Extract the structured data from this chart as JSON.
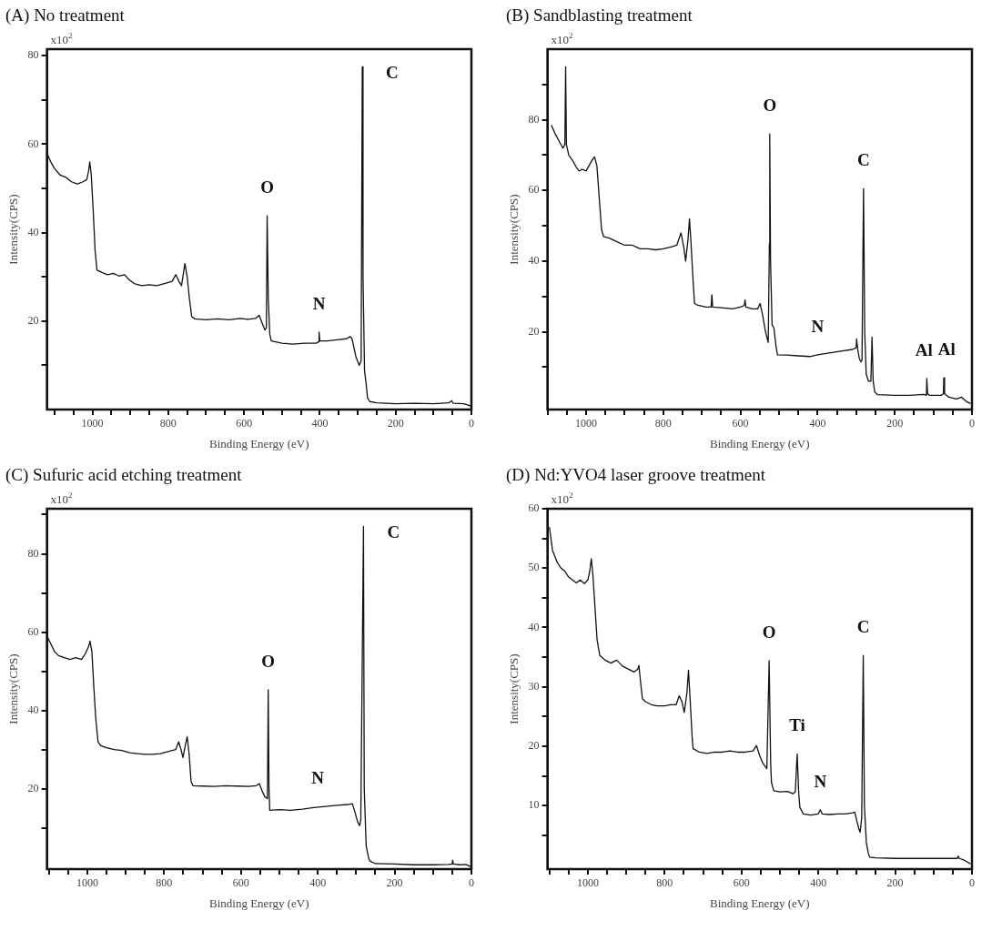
{
  "chart_data": [
    {
      "type": "line",
      "title": "(A) No treatment",
      "xlabel": "Binding Energy (eV)",
      "ylabel": "Intensity(CPS)",
      "color": "#111111",
      "xlim": [
        1120,
        0
      ],
      "ylim": [
        0,
        81.5
      ],
      "xticks": [
        {
          "value": 1100,
          "label": null
        },
        {
          "value": 1050,
          "label": null
        },
        1000,
        {
          "value": 950,
          "label": null
        },
        {
          "value": 900,
          "label": null
        },
        {
          "value": 850,
          "label": null
        },
        800,
        {
          "value": 750,
          "label": null
        },
        {
          "value": 700,
          "label": null
        },
        {
          "value": 650,
          "label": null
        },
        600,
        {
          "value": 550,
          "label": null
        },
        {
          "value": 500,
          "label": null
        },
        {
          "value": 450,
          "label": null
        },
        400,
        {
          "value": 350,
          "label": null
        },
        {
          "value": 300,
          "label": null
        },
        {
          "value": 250,
          "label": null
        },
        200,
        {
          "value": 150,
          "label": null
        },
        {
          "value": 100,
          "label": null
        },
        {
          "value": 50,
          "label": null
        },
        0
      ],
      "yticks": [
        {
          "value": 10,
          "label": null
        },
        20,
        {
          "value": 30,
          "label": null
        },
        40,
        {
          "value": 50,
          "label": null
        },
        60,
        {
          "value": 70,
          "label": null
        },
        80
      ],
      "x": [
        1120,
        1110,
        1100,
        1085,
        1070,
        1055,
        1040,
        1025,
        1015,
        1010,
        1007,
        1003,
        998,
        993,
        988,
        975,
        960,
        945,
        930,
        915,
        905,
        890,
        870,
        850,
        830,
        810,
        790,
        780,
        772,
        765,
        756,
        750,
        744,
        738,
        730,
        700,
        670,
        640,
        610,
        590,
        570,
        560,
        552,
        545,
        541,
        539,
        536,
        532,
        528,
        500,
        470,
        440,
        410,
        403,
        402,
        400,
        380,
        350,
        330,
        320,
        315,
        305,
        296,
        291,
        288,
        286,
        282,
        278,
        274,
        268,
        250,
        200,
        150,
        100,
        60,
        52,
        48,
        20,
        5,
        0
      ],
      "values": [
        58,
        56,
        54.5,
        53,
        52.5,
        51.5,
        51,
        51.5,
        52,
        54,
        56,
        53,
        45,
        36,
        31.5,
        31,
        30.5,
        30.8,
        30.2,
        30.5,
        29.5,
        28.5,
        28,
        28.2,
        28,
        28.5,
        29,
        30.5,
        29,
        28,
        33,
        30,
        25,
        21,
        20.5,
        20.3,
        20.5,
        20.3,
        20.6,
        20.4,
        20.6,
        21.3,
        19.5,
        18,
        18.5,
        43.8,
        25,
        17,
        15.5,
        15,
        14.8,
        15,
        15,
        15.3,
        17.5,
        15.5,
        15.5,
        15.8,
        16,
        16.5,
        16,
        12,
        10,
        11,
        77.5,
        30,
        8.7,
        6,
        2.6,
        1.8,
        1.5,
        1.3,
        1.4,
        1.3,
        1.5,
        2,
        1.4,
        1.3,
        0.9,
        0.6
      ],
      "annotations": [
        "x10$^{2}$",
        {
          "text": "C",
          "x": 288,
          "y": 77.5
        },
        {
          "text": "O",
          "x": 539,
          "y": 43.8
        },
        {
          "text": "N",
          "x": 402,
          "y": 17.5
        }
      ]
    },
    {
      "type": "line",
      "title": "(B) Sandblasting treatment",
      "xlabel": "Binding Energy (eV)",
      "ylabel": "Intensity(CPS)",
      "color": "#111111",
      "xlim": [
        1100,
        0
      ],
      "ylim": [
        -2,
        100
      ],
      "xticks": [
        {
          "value": 1100,
          "label": null
        },
        {
          "value": 1050,
          "label": null
        },
        1000,
        {
          "value": 950,
          "label": null
        },
        {
          "value": 900,
          "label": null
        },
        {
          "value": 850,
          "label": null
        },
        800,
        {
          "value": 750,
          "label": null
        },
        {
          "value": 700,
          "label": null
        },
        {
          "value": 650,
          "label": null
        },
        600,
        {
          "value": 550,
          "label": null
        },
        {
          "value": 500,
          "label": null
        },
        {
          "value": 450,
          "label": null
        },
        400,
        {
          "value": 350,
          "label": null
        },
        {
          "value": 300,
          "label": null
        },
        {
          "value": 250,
          "label": null
        },
        200,
        {
          "value": 150,
          "label": null
        },
        {
          "value": 100,
          "label": null
        },
        {
          "value": 50,
          "label": null
        },
        0
      ],
      "yticks": [
        {
          "value": 10,
          "label": null
        },
        20,
        {
          "value": 30,
          "label": null
        },
        40,
        {
          "value": 50,
          "label": null
        },
        60,
        {
          "value": 70,
          "label": null
        },
        80,
        {
          "value": 90,
          "label": null
        }
      ],
      "x": [
        1090,
        1080,
        1070,
        1060,
        1055,
        1053,
        1051,
        1045,
        1035,
        1025,
        1018,
        1010,
        1000,
        990,
        982,
        978,
        972,
        966,
        960,
        955,
        940,
        920,
        900,
        880,
        860,
        840,
        820,
        800,
        780,
        765,
        754,
        747,
        742,
        736,
        732,
        728,
        723,
        719,
        710,
        690,
        676,
        674,
        672,
        650,
        620,
        600,
        590,
        588,
        586,
        570,
        555,
        549,
        543,
        535,
        528,
        525,
        524,
        522,
        518,
        513,
        508,
        504,
        480,
        450,
        420,
        400,
        370,
        340,
        310,
        300,
        299,
        296,
        292,
        288,
        285,
        281,
        278,
        274,
        268,
        262,
        259,
        256,
        252,
        245,
        200,
        160,
        125,
        118,
        117,
        115,
        110,
        80,
        74,
        73,
        71,
        60,
        40,
        27,
        15,
        4
      ],
      "values": [
        78.5,
        76,
        74,
        72,
        73,
        95,
        73,
        70,
        68.5,
        66.5,
        65.5,
        66,
        65.5,
        67.5,
        69,
        69.5,
        67,
        58,
        49,
        47,
        46.5,
        45.5,
        44.5,
        44.5,
        43.5,
        43.5,
        43.2,
        43.5,
        44,
        44.5,
        48,
        44,
        40,
        46,
        52,
        45,
        35,
        28,
        27.5,
        27,
        27,
        30.5,
        27,
        26.8,
        26.5,
        27,
        27.5,
        29,
        27,
        26.5,
        26.5,
        28,
        25,
        20,
        17,
        45,
        76,
        40,
        22,
        21,
        16,
        13.5,
        13.4,
        13.2,
        13,
        13.5,
        14,
        14.5,
        15,
        15.5,
        18,
        15,
        12.5,
        11.5,
        12,
        60.5,
        20,
        8,
        6,
        6,
        18.5,
        6,
        3,
        2.2,
        2,
        2,
        2.3,
        2,
        6.8,
        2.5,
        2,
        2,
        2.5,
        7,
        2.5,
        1.5,
        1,
        1.5,
        0.3,
        -0.3
      ],
      "annotations": [
        "x10$^{2}$",
        {
          "text": "O",
          "x": 524,
          "y": 76
        },
        {
          "text": "C",
          "x": 281,
          "y": 60.5
        },
        {
          "text": "N",
          "x": 400,
          "y": 13.5
        },
        {
          "text": "Al",
          "x": 117,
          "y": 6.8
        },
        {
          "text": "Al",
          "x": 73,
          "y": 7
        }
      ]
    },
    {
      "type": "line",
      "title": "(C) Sufuric acid etching treatment",
      "xlabel": "Binding Energy (eV)",
      "ylabel": "Intensity(CPS)",
      "color": "#111111",
      "xlim": [
        1105,
        0
      ],
      "ylim": [
        -0.5,
        91.5
      ],
      "xticks": [
        {
          "value": 1100,
          "label": null
        },
        {
          "value": 1050,
          "label": null
        },
        1000,
        {
          "value": 950,
          "label": null
        },
        {
          "value": 900,
          "label": null
        },
        {
          "value": 850,
          "label": null
        },
        800,
        {
          "value": 750,
          "label": null
        },
        {
          "value": 700,
          "label": null
        },
        {
          "value": 650,
          "label": null
        },
        600,
        {
          "value": 550,
          "label": null
        },
        {
          "value": 500,
          "label": null
        },
        {
          "value": 450,
          "label": null
        },
        400,
        {
          "value": 350,
          "label": null
        },
        {
          "value": 300,
          "label": null
        },
        {
          "value": 250,
          "label": null
        },
        200,
        {
          "value": 150,
          "label": null
        },
        {
          "value": 100,
          "label": null
        },
        {
          "value": 50,
          "label": null
        },
        0
      ],
      "yticks": [
        {
          "value": 10,
          "label": null
        },
        20,
        {
          "value": 30,
          "label": null
        },
        40,
        {
          "value": 50,
          "label": null
        },
        60,
        {
          "value": 70,
          "label": null
        },
        80,
        {
          "value": 90,
          "label": null
        }
      ],
      "x": [
        1105,
        1095,
        1085,
        1075,
        1060,
        1045,
        1030,
        1015,
        1005,
        996,
        993,
        988,
        983,
        978,
        972,
        965,
        950,
        930,
        910,
        890,
        870,
        850,
        830,
        810,
        790,
        770,
        762,
        756,
        751,
        745,
        740,
        735,
        730,
        725,
        700,
        670,
        640,
        610,
        580,
        560,
        552,
        545,
        538,
        531,
        529,
        527,
        525,
        500,
        470,
        440,
        410,
        380,
        350,
        320,
        310,
        303,
        296,
        291,
        288,
        281,
        279,
        274,
        268,
        265,
        250,
        200,
        150,
        100,
        60,
        50,
        49,
        47,
        30,
        15,
        5,
        0
      ],
      "values": [
        59,
        57,
        55,
        54,
        53.5,
        53,
        53.5,
        53,
        54.5,
        56.5,
        57.7,
        55,
        46,
        38,
        32,
        31,
        30.5,
        30,
        29.8,
        29.2,
        29,
        28.8,
        28.8,
        29,
        29.5,
        30,
        32,
        30,
        28,
        31,
        33.3,
        29,
        22,
        20.8,
        20.7,
        20.6,
        20.8,
        20.7,
        20.6,
        20.8,
        21.3,
        19.5,
        18,
        17.5,
        45.3,
        20,
        14.5,
        14.7,
        14.5,
        14.8,
        15.2,
        15.5,
        15.8,
        16,
        16.2,
        14,
        11.5,
        10.6,
        12,
        87,
        20,
        5.4,
        2.5,
        1.6,
        0.9,
        0.8,
        0.6,
        0.6,
        0.7,
        0.8,
        1.8,
        0.8,
        0.6,
        0.7,
        0.3,
        -0.1
      ],
      "annotations": [
        "x10$^{2}$",
        {
          "text": "C",
          "x": 281,
          "y": 87
        },
        {
          "text": "O",
          "x": 529,
          "y": 45.3
        },
        {
          "text": "N",
          "x": 400,
          "y": 15.5
        }
      ]
    },
    {
      "type": "line",
      "title": "(D) Nd:YVO4 laser groove treatment",
      "xlabel": "Binding Energy (eV)",
      "ylabel": "Intensity(CPS)",
      "color": "#111111",
      "xlim": [
        1105,
        0
      ],
      "ylim": [
        -0.7,
        60
      ],
      "xticks": [
        {
          "value": 1100,
          "label": null
        },
        {
          "value": 1050,
          "label": null
        },
        1000,
        {
          "value": 950,
          "label": null
        },
        {
          "value": 900,
          "label": null
        },
        {
          "value": 850,
          "label": null
        },
        800,
        {
          "value": 750,
          "label": null
        },
        {
          "value": 700,
          "label": null
        },
        {
          "value": 650,
          "label": null
        },
        600,
        {
          "value": 550,
          "label": null
        },
        {
          "value": 500,
          "label": null
        },
        {
          "value": 450,
          "label": null
        },
        400,
        {
          "value": 350,
          "label": null
        },
        {
          "value": 300,
          "label": null
        },
        {
          "value": 250,
          "label": null
        },
        200,
        {
          "value": 150,
          "label": null
        },
        {
          "value": 100,
          "label": null
        },
        {
          "value": 50,
          "label": null
        },
        0
      ],
      "yticks": [
        {
          "value": 5,
          "label": null
        },
        10,
        {
          "value": 15,
          "label": null
        },
        20,
        {
          "value": 25,
          "label": null
        },
        30,
        {
          "value": 35,
          "label": null
        },
        40,
        {
          "value": 45,
          "label": null
        },
        50,
        {
          "value": 55,
          "label": null
        },
        60
      ],
      "x": [
        1100,
        1092,
        1080,
        1070,
        1060,
        1050,
        1040,
        1030,
        1020,
        1009,
        1000,
        995,
        991,
        987,
        982,
        976,
        969,
        955,
        940,
        925,
        910,
        895,
        880,
        870,
        867,
        863,
        858,
        850,
        835,
        820,
        800,
        785,
        770,
        762,
        755,
        749,
        742,
        738,
        733,
        728,
        726,
        710,
        690,
        670,
        650,
        630,
        610,
        590,
        570,
        561,
        553,
        545,
        534,
        528,
        524,
        522,
        516,
        500,
        480,
        466,
        460,
        455,
        451,
        448,
        439,
        420,
        400,
        395,
        390,
        370,
        350,
        330,
        310,
        305,
        300,
        294,
        291,
        287,
        283,
        280,
        275,
        270,
        266,
        250,
        200,
        150,
        100,
        60,
        38,
        36,
        33,
        20,
        4
      ],
      "values": [
        56.9,
        53,
        51,
        50,
        49.5,
        48.5,
        48,
        47.5,
        48,
        47.4,
        48,
        49.5,
        51.6,
        49,
        44,
        38,
        35.3,
        34.5,
        34,
        34.5,
        33.5,
        33,
        32.5,
        33,
        33.6,
        31,
        28,
        27.5,
        27,
        26.8,
        26.8,
        27,
        27,
        28.5,
        27.5,
        25.7,
        29,
        32.8,
        27,
        21,
        19.6,
        19,
        18.8,
        19,
        19,
        19.2,
        19,
        19,
        19.2,
        20.1,
        18.5,
        17.2,
        16.2,
        34.4,
        17,
        13.9,
        12.5,
        12.3,
        12.4,
        12,
        12.3,
        18.7,
        12,
        9.7,
        8.6,
        8.4,
        8.6,
        9.3,
        8.6,
        8.5,
        8.6,
        8.6,
        8.8,
        8.9,
        7.5,
        6,
        5.5,
        8,
        35.3,
        10,
        3.8,
        2,
        1.3,
        1.2,
        1.1,
        1.1,
        1.1,
        1.1,
        1.1,
        1.5,
        1.1,
        0.8,
        0.2
      ],
      "annotations": [
        "x10$^{2}$",
        {
          "text": "O",
          "x": 528,
          "y": 34.4
        },
        {
          "text": "C",
          "x": 283,
          "y": 35.3
        },
        {
          "text": "Ti",
          "x": 455,
          "y": 18.7
        },
        {
          "text": "N",
          "x": 395,
          "y": 9.3
        }
      ]
    }
  ]
}
